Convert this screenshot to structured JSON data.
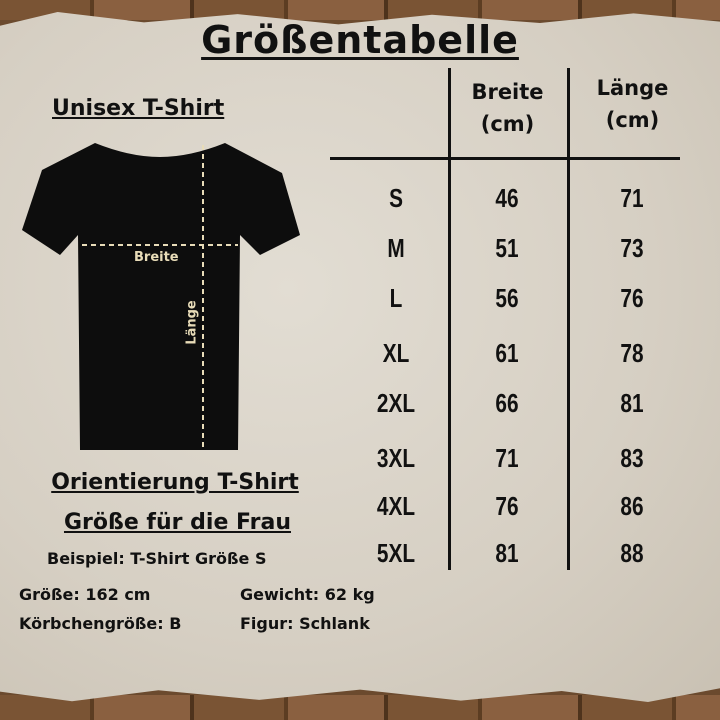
{
  "title": "Größentabelle",
  "shirt": {
    "heading": "Unisex T-Shirt",
    "width_label": "Breite",
    "length_label": "Länge",
    "shirt_color": "#0d0d0d",
    "measure_color": "#e8dcb8"
  },
  "table": {
    "headers": [
      "Breite (cm)",
      "Länge (cm)"
    ],
    "rows": [
      {
        "size": "S",
        "breite": "46",
        "laenge": "71"
      },
      {
        "size": "M",
        "breite": "51",
        "laenge": "73"
      },
      {
        "size": "L",
        "breite": "56",
        "laenge": "76"
      },
      {
        "size": "XL",
        "breite": "61",
        "laenge": "78"
      },
      {
        "size": "2XL",
        "breite": "66",
        "laenge": "81"
      },
      {
        "size": "3XL",
        "breite": "71",
        "laenge": "83"
      },
      {
        "size": "4XL",
        "breite": "76",
        "laenge": "86"
      },
      {
        "size": "5XL",
        "breite": "81",
        "laenge": "88"
      }
    ]
  },
  "orientation": {
    "heading1": "Orientierung T-Shirt",
    "heading2": "Größe für die Frau",
    "example": "Beispiel: T-Shirt Größe S",
    "height": "Größe: 162 cm",
    "weight": "Gewicht: 62 kg",
    "cup": "Körbchengröße: B",
    "figure": "Figur: Schlank"
  }
}
